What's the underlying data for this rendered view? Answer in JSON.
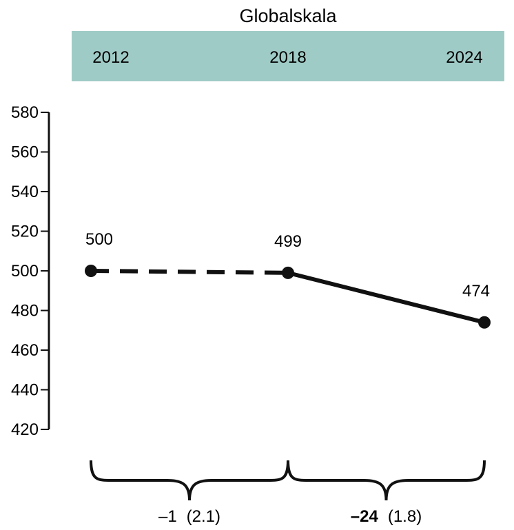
{
  "chart_data": {
    "type": "line",
    "title": "Globalskala",
    "categories": [
      "2012",
      "2018",
      "2024"
    ],
    "header_color": "#9fcbc6",
    "series": [
      {
        "values": [
          500,
          499,
          474
        ]
      }
    ],
    "segment_styles": [
      "dashed",
      "solid"
    ],
    "ylim": [
      420,
      580
    ],
    "yticks": [
      580,
      560,
      540,
      520,
      500,
      480,
      460,
      440,
      420
    ],
    "ytick_labels": [
      "580",
      "560",
      "540",
      "520",
      "500",
      "480",
      "460",
      "440",
      "420"
    ],
    "value_labels": [
      "500",
      "499",
      "474"
    ],
    "changes": [
      {
        "value": "–1",
        "se": "(2.1)",
        "significant": false
      },
      {
        "value": "–24",
        "se": "(1.8)",
        "significant": true
      }
    ],
    "grid": false
  }
}
